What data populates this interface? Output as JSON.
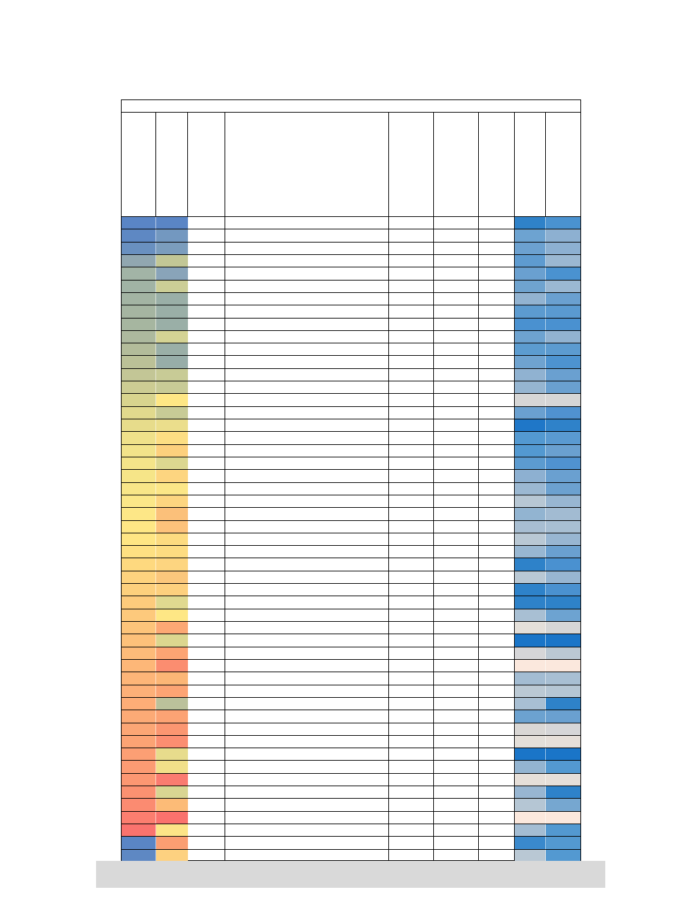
{
  "sheet": {
    "title": "",
    "headers": [
      "",
      "",
      "",
      "",
      "",
      "",
      "",
      "",
      ""
    ],
    "col_a_colors": [
      "#5a85c5",
      "#5e88c3",
      "#6990c0",
      "#91a7b0",
      "#a2b4a6",
      "#a1b3a5",
      "#a3b4a3",
      "#a5b5a1",
      "#a6b6a0",
      "#adb99e",
      "#b3bc9a",
      "#bbc197",
      "#c3c696",
      "#cccc93",
      "#d8d48e",
      "#e1d98d",
      "#e7dc8b",
      "#efe18a",
      "#f2e38a",
      "#f4e489",
      "#f6e588",
      "#f8e688",
      "#fbe788",
      "#fde787",
      "#fee785",
      "#ffe684",
      "#fee082",
      "#fed97f",
      "#fed37e",
      "#fdd07d",
      "#fdcb7c",
      "#fdc97c",
      "#fdc47a",
      "#fdc17a",
      "#fdbb79",
      "#fdb778",
      "#fdb578",
      "#fdb078",
      "#fdad77",
      "#fcaa76",
      "#fca675",
      "#fca374",
      "#fc9f74",
      "#fc9b73",
      "#fc9772",
      "#fb9171",
      "#fb8b71",
      "#fb7e6f",
      "#fa736e"
    ],
    "col_b_colors": [
      "#5a85c5",
      "#7398c0",
      "#7b9dbd",
      "#c2c796",
      "#89a4b9",
      "#ccce96",
      "#9aafa7",
      "#9aafa7",
      "#9aafa7",
      "#d4d394",
      "#9aafa7",
      "#97ada8",
      "#c8cb96",
      "#c8cb96",
      "#fee785",
      "#c8cb96",
      "#ebde8c",
      "#fdde83",
      "#fdd07d",
      "#dcd790",
      "#fdd580",
      "#fce687",
      "#fdd580",
      "#fbc07a",
      "#fdc27b",
      "#fddb80",
      "#fddc81",
      "#fdd580",
      "#fbc77c",
      "#fdd07e",
      "#e0d990",
      "#fee785",
      "#fca874",
      "#dcd68f",
      "#fca473",
      "#fb8d70",
      "#fcb676",
      "#fca474",
      "#bbc19b",
      "#fca374",
      "#fb9671",
      "#fb8e71",
      "#e7dc8c",
      "#f1e089",
      "#fa7b70",
      "#d9d592",
      "#fcbb77",
      "#fa726d",
      "#fde487",
      "#fb9e72",
      "#fdd180"
    ],
    "col_h_colors": [
      "#2f82c9",
      "#6da3d1",
      "#6ca1d0",
      "#5e9bd0",
      "#6aa0d0",
      "#6fa3cf",
      "#92b3d1",
      "#5c9bd0",
      "#4a91d0",
      "#6ea3d0",
      "#5c9cd0",
      "#6fa3d0",
      "#90b2d1",
      "#95b5d1",
      "#d6d6d6",
      "#6aa0d0",
      "#1f77c8",
      "#5399d1",
      "#5399d1",
      "#5c9bd0",
      "#8db0d1",
      "#9bb8d2",
      "#b7c7d4",
      "#92b4d1",
      "#a8bed2",
      "#b9c8d4",
      "#98b7d2",
      "#2e82c9",
      "#b9c8d4",
      "#2e82c9",
      "#2e82c9",
      "#a8bfd3",
      "#e4dfd9",
      "#1a75c8",
      "#d6d6d8",
      "#fbe8dd",
      "#a3bcd2",
      "#bbc9d4",
      "#a8bfd3",
      "#6ca2d0",
      "#d9d7d5",
      "#e4dfd9",
      "#1a75c8",
      "#93b4d1",
      "#e6dfd9",
      "#98b6d2",
      "#b5c6d4",
      "#fbe8dd",
      "#a4bdd3",
      "#3a89cc",
      "#b9c8d4"
    ],
    "col_i_colors": [
      "#4a92d0",
      "#8db0d1",
      "#8db0d1",
      "#9bb8d2",
      "#4a92d0",
      "#9bb8d2",
      "#6aa0d0",
      "#5a9ad1",
      "#4a91d0",
      "#92b3d1",
      "#5c9bd0",
      "#4d93d0",
      "#6aa0d0",
      "#6aa0d0",
      "#d6d6d6",
      "#5092d0",
      "#2f82c9",
      "#5a9ad1",
      "#6aa0d0",
      "#5092d0",
      "#6aa0d0",
      "#6ca1d0",
      "#98b6d2",
      "#a2bbd2",
      "#a8bfd3",
      "#98b6d2",
      "#6aa0d0",
      "#4a91d0",
      "#98b6d2",
      "#4a91d0",
      "#2e82c9",
      "#6da3d1",
      "#d6d6d6",
      "#1a75c8",
      "#bbc8d3",
      "#fbe8dd",
      "#a8bfd3",
      "#b5c6d4",
      "#2e82c9",
      "#6aa0d0",
      "#d6d6d8",
      "#e6dfd9",
      "#1a75c8",
      "#5399d1",
      "#e6dfd9",
      "#2e82c9",
      "#76a7d0",
      "#fbe8dd",
      "#5399d1",
      "#5399d1",
      "#5399d1"
    ]
  },
  "footer": {
    "text": ""
  }
}
